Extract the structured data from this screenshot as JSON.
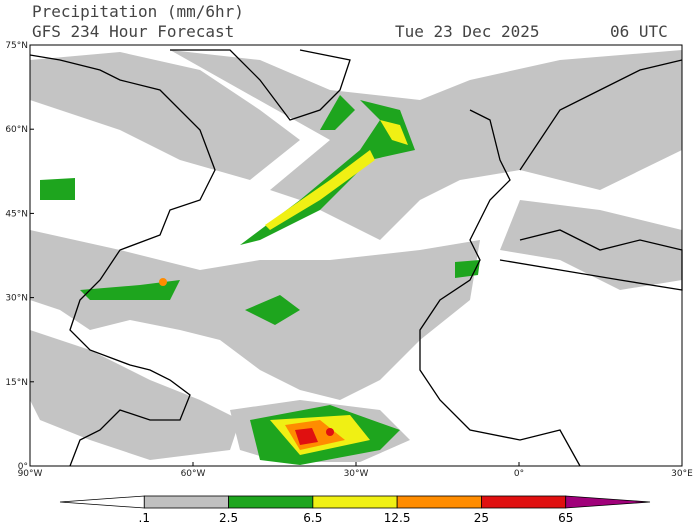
{
  "header": {
    "title": "Precipitation (mm/6hr)",
    "subtitle": "GFS 234 Hour Forecast",
    "date": "Tue 23 Dec 2025",
    "time": "06 UTC"
  },
  "map": {
    "lat_labels": [
      "75°N",
      "60°N",
      "45°N",
      "30°N",
      "15°N",
      "0°"
    ],
    "lon_labels": [
      "90°W",
      "60°W",
      "30°W",
      "0°",
      "30°E"
    ]
  },
  "colorbar": {
    "labels": [
      ".1",
      "2.5",
      "6.5",
      "12.5",
      "25",
      "65"
    ],
    "colors": [
      "#ffffff",
      "#c0c0c0",
      "#1ea51e",
      "#f0f014",
      "#ff8c00",
      "#e01010",
      "#a0007a"
    ]
  }
}
